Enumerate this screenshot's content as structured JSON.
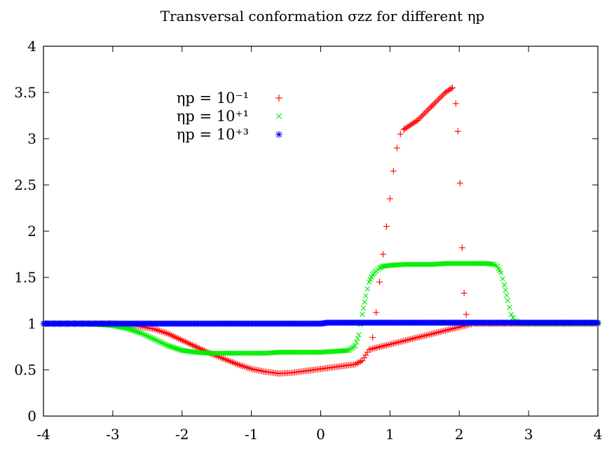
{
  "chart_data": {
    "type": "scatter",
    "title": "Transversal conformation σzz for different ηp",
    "xlabel": "",
    "ylabel": "",
    "xlim": [
      -4,
      4
    ],
    "ylim": [
      0,
      4
    ],
    "x_ticks": [
      "-4",
      "-3",
      "-2",
      "-1",
      "0",
      "1",
      "2",
      "3",
      "4"
    ],
    "y_ticks": [
      "0",
      "0.5",
      "1",
      "1.5",
      "2",
      "2.5",
      "3",
      "3.5",
      "4"
    ],
    "grid": false,
    "legend_position": "top-left",
    "series": [
      {
        "name": "ηp = 10⁻¹",
        "marker": "plus",
        "color": "#ff0000",
        "points": [
          [
            -4,
            1
          ],
          [
            -3.8,
            1
          ],
          [
            -3.6,
            1
          ],
          [
            -3.4,
            1
          ],
          [
            -3.2,
            1
          ],
          [
            -3,
            1
          ],
          [
            -2.8,
            0.99
          ],
          [
            -2.6,
            0.97
          ],
          [
            -2.4,
            0.94
          ],
          [
            -2.2,
            0.89
          ],
          [
            -2,
            0.82
          ],
          [
            -1.8,
            0.75
          ],
          [
            -1.6,
            0.68
          ],
          [
            -1.4,
            0.62
          ],
          [
            -1.2,
            0.56
          ],
          [
            -1,
            0.51
          ],
          [
            -0.8,
            0.48
          ],
          [
            -0.6,
            0.46
          ],
          [
            -0.4,
            0.47
          ],
          [
            -0.2,
            0.49
          ],
          [
            0,
            0.51
          ],
          [
            0.2,
            0.53
          ],
          [
            0.4,
            0.55
          ],
          [
            0.5,
            0.56
          ],
          [
            0.6,
            0.6
          ],
          [
            0.7,
            0.72
          ],
          [
            0.75,
            0.85
          ],
          [
            0.8,
            1.12
          ],
          [
            0.85,
            1.45
          ],
          [
            0.9,
            1.75
          ],
          [
            0.95,
            2.05
          ],
          [
            1,
            2.35
          ],
          [
            1.05,
            2.65
          ],
          [
            1.1,
            2.9
          ],
          [
            1.15,
            3.05
          ],
          [
            1.2,
            3.1
          ],
          [
            1.4,
            3.2
          ],
          [
            1.6,
            3.35
          ],
          [
            1.8,
            3.5
          ],
          [
            1.9,
            3.55
          ],
          [
            1.95,
            3.38
          ],
          [
            1.98,
            3.08
          ],
          [
            2.01,
            2.52
          ],
          [
            2.04,
            1.82
          ],
          [
            2.07,
            1.33
          ],
          [
            2.1,
            1.1
          ],
          [
            2.2,
            1
          ],
          [
            2.4,
            1
          ],
          [
            2.6,
            1
          ],
          [
            2.8,
            1
          ],
          [
            3,
            1
          ],
          [
            3.2,
            1
          ],
          [
            3.4,
            1
          ],
          [
            3.6,
            1
          ],
          [
            3.8,
            1
          ],
          [
            4,
            1
          ]
        ]
      },
      {
        "name": "ηp = 10⁺¹",
        "marker": "cross",
        "color": "#00ee00",
        "points": [
          [
            -4,
            1
          ],
          [
            -3.8,
            1
          ],
          [
            -3.6,
            1
          ],
          [
            -3.4,
            1
          ],
          [
            -3.2,
            0.99
          ],
          [
            -3,
            0.98
          ],
          [
            -2.8,
            0.95
          ],
          [
            -2.6,
            0.9
          ],
          [
            -2.4,
            0.83
          ],
          [
            -2.2,
            0.76
          ],
          [
            -2,
            0.71
          ],
          [
            -1.8,
            0.69
          ],
          [
            -1.6,
            0.68
          ],
          [
            -1.4,
            0.68
          ],
          [
            -1.2,
            0.68
          ],
          [
            -1,
            0.68
          ],
          [
            -0.8,
            0.68
          ],
          [
            -0.6,
            0.69
          ],
          [
            -0.4,
            0.69
          ],
          [
            -0.2,
            0.69
          ],
          [
            0,
            0.69
          ],
          [
            0.2,
            0.7
          ],
          [
            0.4,
            0.71
          ],
          [
            0.5,
            0.76
          ],
          [
            0.55,
            0.88
          ],
          [
            0.6,
            1.1
          ],
          [
            0.65,
            1.3
          ],
          [
            0.7,
            1.45
          ],
          [
            0.75,
            1.53
          ],
          [
            0.8,
            1.57
          ],
          [
            0.85,
            1.6
          ],
          [
            0.9,
            1.62
          ],
          [
            1,
            1.63
          ],
          [
            1.2,
            1.64
          ],
          [
            1.4,
            1.64
          ],
          [
            1.6,
            1.64
          ],
          [
            1.8,
            1.65
          ],
          [
            2,
            1.65
          ],
          [
            2.2,
            1.65
          ],
          [
            2.4,
            1.65
          ],
          [
            2.5,
            1.64
          ],
          [
            2.55,
            1.62
          ],
          [
            2.6,
            1.55
          ],
          [
            2.65,
            1.42
          ],
          [
            2.7,
            1.25
          ],
          [
            2.75,
            1.1
          ],
          [
            2.8,
            1.03
          ],
          [
            2.9,
            1
          ],
          [
            3,
            1
          ],
          [
            3.2,
            1
          ],
          [
            3.4,
            1
          ],
          [
            3.6,
            1
          ],
          [
            3.8,
            1
          ],
          [
            4,
            1
          ]
        ]
      },
      {
        "name": "ηp = 10⁺³",
        "marker": "star",
        "color": "#0000ff",
        "points": [
          [
            -4,
            1
          ],
          [
            -3.8,
            1
          ],
          [
            -3.6,
            1
          ],
          [
            -3.4,
            1
          ],
          [
            -3.2,
            1
          ],
          [
            -3,
            1
          ],
          [
            -2.8,
            1
          ],
          [
            -2.6,
            1
          ],
          [
            -2.4,
            1
          ],
          [
            -2.2,
            1
          ],
          [
            -2,
            1
          ],
          [
            -1.8,
            1
          ],
          [
            -1.6,
            1
          ],
          [
            -1.4,
            1
          ],
          [
            -1.2,
            1
          ],
          [
            -1,
            1
          ],
          [
            -0.8,
            1
          ],
          [
            -0.6,
            1
          ],
          [
            -0.4,
            1
          ],
          [
            -0.2,
            1
          ],
          [
            0,
            1
          ],
          [
            0.1,
            1.01
          ],
          [
            0.2,
            1.01
          ],
          [
            0.4,
            1.01
          ],
          [
            0.6,
            1.01
          ],
          [
            0.8,
            1.01
          ],
          [
            1,
            1.01
          ],
          [
            1.2,
            1.01
          ],
          [
            1.4,
            1.01
          ],
          [
            1.6,
            1.01
          ],
          [
            1.8,
            1.01
          ],
          [
            2,
            1.01
          ],
          [
            2.2,
            1.01
          ],
          [
            2.4,
            1.01
          ],
          [
            2.6,
            1.01
          ],
          [
            2.8,
            1.01
          ],
          [
            3,
            1.01
          ],
          [
            3.2,
            1.01
          ],
          [
            3.4,
            1.01
          ],
          [
            3.6,
            1.01
          ],
          [
            3.8,
            1.01
          ],
          [
            4,
            1.01
          ]
        ]
      }
    ]
  }
}
